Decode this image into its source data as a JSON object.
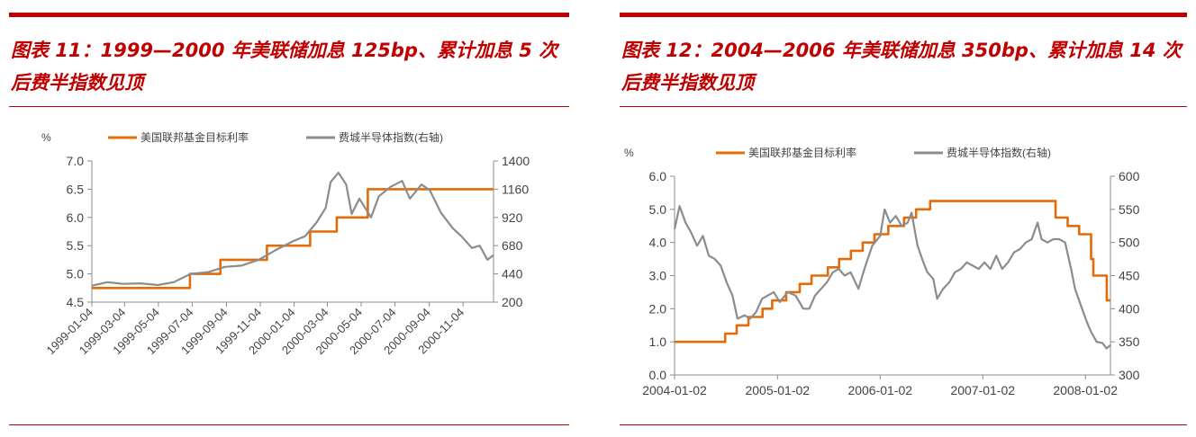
{
  "charts": [
    {
      "title": "图表 11：1999—2000 年美联储加息 125bp、累计加息 5 次后费半指数见顶",
      "unit_label": "%",
      "legend": [
        "美国联邦基金目标利率",
        "费城半导体指数(右轴)"
      ],
      "chart_data": {
        "type": "line",
        "x_tick_labels": [
          "1999-01-04",
          "1999-03-04",
          "1999-05-04",
          "1999-07-04",
          "1999-09-04",
          "1999-11-04",
          "2000-01-04",
          "2000-03-04",
          "2000-05-04",
          "2000-07-04",
          "2000-09-04",
          "2000-11-04"
        ],
        "x_range": [
          "1999-01-04",
          "2000-12-29"
        ],
        "ylim_left": [
          4.5,
          7.0
        ],
        "yticks_left": [
          "4.5",
          "5.0",
          "5.5",
          "6.0",
          "6.5",
          "7.0"
        ],
        "ylim_right": [
          200,
          1400
        ],
        "yticks_right": [
          "200",
          "440",
          "680",
          "920",
          "1160",
          "1400"
        ],
        "series": [
          {
            "name": "美国联邦基金目标利率",
            "axis": "left",
            "color": "#e36c09",
            "step": true,
            "points": [
              [
                "1999-01-04",
                4.75
              ],
              [
                "1999-06-30",
                5.0
              ],
              [
                "1999-08-24",
                5.25
              ],
              [
                "1999-11-16",
                5.5
              ],
              [
                "2000-02-02",
                5.75
              ],
              [
                "2000-03-21",
                6.0
              ],
              [
                "2000-05-16",
                6.5
              ],
              [
                "2000-12-29",
                6.5
              ]
            ]
          },
          {
            "name": "费城半导体指数(右轴)",
            "axis": "right",
            "color": "#8c8c8c",
            "step": false,
            "points": [
              [
                "1999-01-04",
                340
              ],
              [
                "1999-02-01",
                370
              ],
              [
                "1999-03-01",
                355
              ],
              [
                "1999-04-01",
                360
              ],
              [
                "1999-05-03",
                345
              ],
              [
                "1999-06-01",
                370
              ],
              [
                "1999-07-01",
                440
              ],
              [
                "1999-08-02",
                455
              ],
              [
                "1999-09-01",
                500
              ],
              [
                "1999-10-01",
                510
              ],
              [
                "1999-11-01",
                560
              ],
              [
                "1999-12-01",
                640
              ],
              [
                "2000-01-03",
                720
              ],
              [
                "2000-01-24",
                760
              ],
              [
                "2000-02-14",
                880
              ],
              [
                "2000-03-01",
                1000
              ],
              [
                "2000-03-10",
                1220
              ],
              [
                "2000-03-24",
                1300
              ],
              [
                "2000-04-07",
                1200
              ],
              [
                "2000-04-17",
                950
              ],
              [
                "2000-05-01",
                1080
              ],
              [
                "2000-05-22",
                920
              ],
              [
                "2000-06-05",
                1100
              ],
              [
                "2000-06-26",
                1180
              ],
              [
                "2000-07-17",
                1230
              ],
              [
                "2000-07-31",
                1080
              ],
              [
                "2000-08-21",
                1200
              ],
              [
                "2000-09-05",
                1150
              ],
              [
                "2000-09-25",
                960
              ],
              [
                "2000-10-16",
                830
              ],
              [
                "2000-11-01",
                760
              ],
              [
                "2000-11-20",
                660
              ],
              [
                "2000-12-04",
                680
              ],
              [
                "2000-12-18",
                560
              ],
              [
                "2000-12-29",
                600
              ]
            ]
          }
        ]
      }
    },
    {
      "title": "图表 12：2004—2006 年美联储加息 350bp、累计加息 14 次后费半指数见顶",
      "unit_label": "%",
      "legend": [
        "美国联邦基金目标利率",
        "费城半导体指数(右轴)"
      ],
      "chart_data": {
        "type": "line",
        "x_tick_labels": [
          "2004-01-02",
          "2005-01-02",
          "2006-01-02",
          "2007-01-02",
          "2008-01-02"
        ],
        "x_range": [
          "2004-01-02",
          "2008-03-31"
        ],
        "ylim_left": [
          0.0,
          6.0
        ],
        "yticks_left": [
          "0.0",
          "1.0",
          "2.0",
          "3.0",
          "4.0",
          "5.0",
          "6.0"
        ],
        "ylim_right": [
          300,
          600
        ],
        "yticks_right": [
          "300",
          "350",
          "400",
          "450",
          "500",
          "550",
          "600"
        ],
        "series": [
          {
            "name": "美国联邦基金目标利率",
            "axis": "left",
            "color": "#e36c09",
            "step": true,
            "points": [
              [
                "2004-01-02",
                1.0
              ],
              [
                "2004-06-30",
                1.25
              ],
              [
                "2004-08-10",
                1.5
              ],
              [
                "2004-09-21",
                1.75
              ],
              [
                "2004-11-10",
                2.0
              ],
              [
                "2004-12-14",
                2.25
              ],
              [
                "2005-02-02",
                2.5
              ],
              [
                "2005-03-22",
                2.75
              ],
              [
                "2005-05-03",
                3.0
              ],
              [
                "2005-06-30",
                3.25
              ],
              [
                "2005-08-09",
                3.5
              ],
              [
                "2005-09-20",
                3.75
              ],
              [
                "2005-11-01",
                4.0
              ],
              [
                "2005-12-13",
                4.25
              ],
              [
                "2006-01-31",
                4.5
              ],
              [
                "2006-03-28",
                4.75
              ],
              [
                "2006-05-10",
                5.0
              ],
              [
                "2006-06-29",
                5.25
              ],
              [
                "2007-09-18",
                4.75
              ],
              [
                "2007-10-31",
                4.5
              ],
              [
                "2007-12-11",
                4.25
              ],
              [
                "2008-01-22",
                3.5
              ],
              [
                "2008-01-30",
                3.0
              ],
              [
                "2008-03-18",
                2.25
              ],
              [
                "2008-03-31",
                2.25
              ]
            ]
          },
          {
            "name": "费城半导体指数(右轴)",
            "axis": "right",
            "color": "#8c8c8c",
            "step": false,
            "points": [
              [
                "2004-01-02",
                520
              ],
              [
                "2004-01-20",
                555
              ],
              [
                "2004-02-10",
                530
              ],
              [
                "2004-03-01",
                515
              ],
              [
                "2004-03-22",
                495
              ],
              [
                "2004-04-12",
                510
              ],
              [
                "2004-05-03",
                480
              ],
              [
                "2004-05-24",
                475
              ],
              [
                "2004-06-14",
                465
              ],
              [
                "2004-07-05",
                440
              ],
              [
                "2004-07-26",
                420
              ],
              [
                "2004-08-13",
                385
              ],
              [
                "2004-09-07",
                390
              ],
              [
                "2004-09-27",
                385
              ],
              [
                "2004-10-18",
                395
              ],
              [
                "2004-11-08",
                415
              ],
              [
                "2004-11-29",
                420
              ],
              [
                "2004-12-20",
                425
              ],
              [
                "2005-01-10",
                410
              ],
              [
                "2005-02-07",
                425
              ],
              [
                "2005-03-07",
                420
              ],
              [
                "2005-04-04",
                400
              ],
              [
                "2005-04-25",
                400
              ],
              [
                "2005-05-16",
                420
              ],
              [
                "2005-06-06",
                430
              ],
              [
                "2005-06-27",
                440
              ],
              [
                "2005-07-18",
                455
              ],
              [
                "2005-08-08",
                460
              ],
              [
                "2005-08-29",
                450
              ],
              [
                "2005-09-19",
                455
              ],
              [
                "2005-10-17",
                430
              ],
              [
                "2005-11-07",
                460
              ],
              [
                "2005-12-05",
                495
              ],
              [
                "2006-01-02",
                510
              ],
              [
                "2006-01-18",
                550
              ],
              [
                "2006-02-06",
                530
              ],
              [
                "2006-02-27",
                540
              ],
              [
                "2006-03-20",
                525
              ],
              [
                "2006-04-10",
                530
              ],
              [
                "2006-04-24",
                545
              ],
              [
                "2006-05-15",
                495
              ],
              [
                "2006-06-05",
                470
              ],
              [
                "2006-06-19",
                455
              ],
              [
                "2006-07-10",
                445
              ],
              [
                "2006-07-24",
                415
              ],
              [
                "2006-08-14",
                430
              ],
              [
                "2006-09-05",
                440
              ],
              [
                "2006-09-25",
                455
              ],
              [
                "2006-10-16",
                460
              ],
              [
                "2006-11-06",
                470
              ],
              [
                "2006-11-27",
                465
              ],
              [
                "2006-12-18",
                460
              ],
              [
                "2007-01-08",
                470
              ],
              [
                "2007-01-29",
                460
              ],
              [
                "2007-02-19",
                480
              ],
              [
                "2007-03-12",
                460
              ],
              [
                "2007-04-02",
                470
              ],
              [
                "2007-04-23",
                485
              ],
              [
                "2007-05-14",
                490
              ],
              [
                "2007-06-04",
                500
              ],
              [
                "2007-06-25",
                505
              ],
              [
                "2007-07-16",
                530
              ],
              [
                "2007-07-30",
                505
              ],
              [
                "2007-08-20",
                500
              ],
              [
                "2007-09-10",
                505
              ],
              [
                "2007-10-01",
                505
              ],
              [
                "2007-10-22",
                500
              ],
              [
                "2007-11-12",
                460
              ],
              [
                "2007-11-26",
                430
              ],
              [
                "2007-12-17",
                405
              ],
              [
                "2008-01-07",
                380
              ],
              [
                "2008-01-22",
                365
              ],
              [
                "2008-02-11",
                350
              ],
              [
                "2008-03-03",
                348
              ],
              [
                "2008-03-17",
                340
              ],
              [
                "2008-03-31",
                345
              ]
            ]
          }
        ]
      }
    }
  ]
}
